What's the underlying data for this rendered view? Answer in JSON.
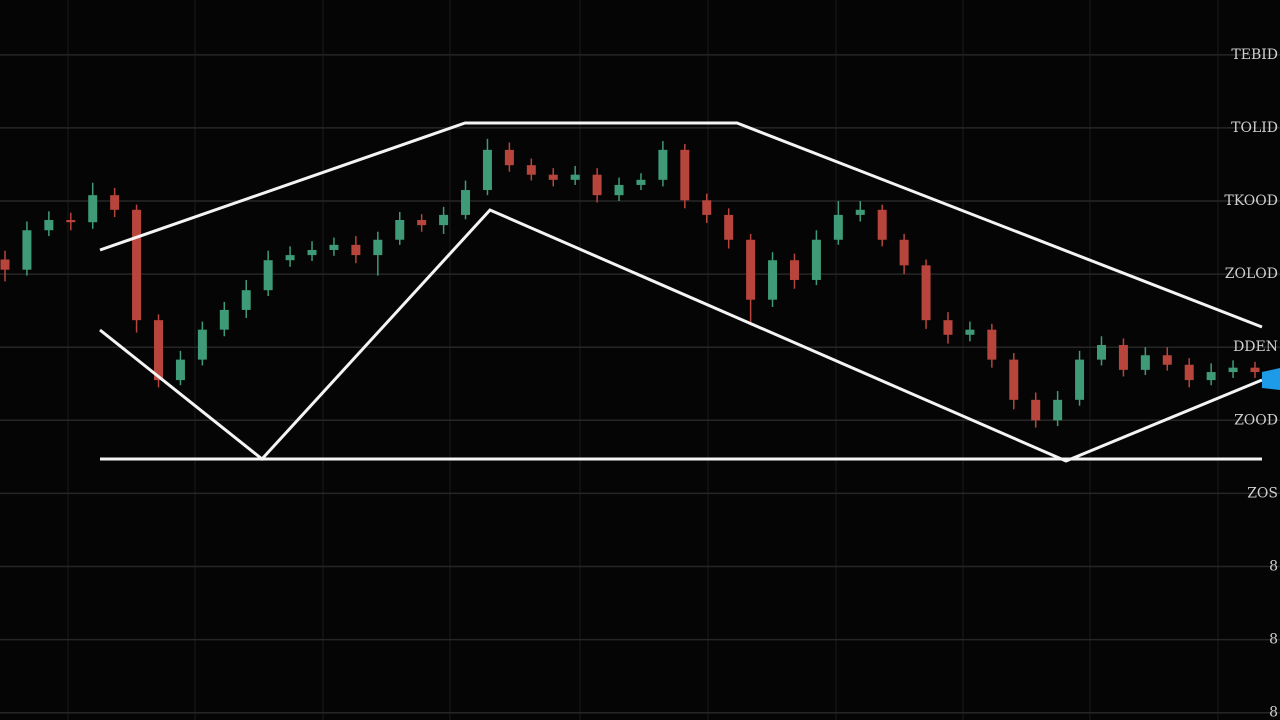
{
  "chart_data": {
    "type": "candlestick",
    "open": [
      6.2,
      6.06,
      6.6,
      6.74,
      6.71,
      7.08,
      6.88,
      5.37,
      4.55,
      4.83,
      5.24,
      5.51,
      5.78,
      6.19,
      6.26,
      6.33,
      6.4,
      6.26,
      6.47,
      6.74,
      6.67,
      6.81,
      7.15,
      7.7,
      7.49,
      7.36,
      7.29,
      7.36,
      7.08,
      7.22,
      7.29,
      7.7,
      7.01,
      6.81,
      6.47,
      5.65,
      6.19,
      5.92,
      6.47,
      6.81,
      6.88,
      6.47,
      6.12,
      5.37,
      5.17,
      5.24,
      4.83,
      4.28,
      4.0,
      4.28,
      4.83,
      5.03,
      4.69,
      4.89,
      4.76,
      4.55,
      4.66,
      4.72
    ],
    "high": [
      6.32,
      6.72,
      6.86,
      6.84,
      7.25,
      7.18,
      6.95,
      5.45,
      4.95,
      5.35,
      5.62,
      5.92,
      6.32,
      6.38,
      6.45,
      6.5,
      6.52,
      6.58,
      6.85,
      6.82,
      6.92,
      7.28,
      7.85,
      7.8,
      7.58,
      7.45,
      7.48,
      7.45,
      7.32,
      7.38,
      7.82,
      7.78,
      7.1,
      6.9,
      6.55,
      6.3,
      6.28,
      6.6,
      7.0,
      7.0,
      6.95,
      6.55,
      6.2,
      5.48,
      5.35,
      5.32,
      4.92,
      4.38,
      4.4,
      4.95,
      5.15,
      5.12,
      5.0,
      5.0,
      4.85,
      4.78,
      4.82,
      4.8
    ],
    "low": [
      5.9,
      5.98,
      6.52,
      6.6,
      6.62,
      6.78,
      5.2,
      4.45,
      4.48,
      4.75,
      5.15,
      5.4,
      5.7,
      6.1,
      6.18,
      6.25,
      6.15,
      5.98,
      6.4,
      6.58,
      6.55,
      6.75,
      7.08,
      7.4,
      7.28,
      7.2,
      7.22,
      6.98,
      7.0,
      7.15,
      7.2,
      6.9,
      6.7,
      6.35,
      5.3,
      5.55,
      5.8,
      5.85,
      6.4,
      6.72,
      6.38,
      6.0,
      5.25,
      5.05,
      5.08,
      4.72,
      4.15,
      3.9,
      3.92,
      4.2,
      4.75,
      4.6,
      4.62,
      4.68,
      4.45,
      4.48,
      4.58,
      4.58
    ],
    "close": [
      6.06,
      6.6,
      6.74,
      6.71,
      7.08,
      6.88,
      5.37,
      4.55,
      4.83,
      5.24,
      5.51,
      5.78,
      6.19,
      6.26,
      6.33,
      6.4,
      6.26,
      6.47,
      6.74,
      6.67,
      6.81,
      7.15,
      7.7,
      7.49,
      7.36,
      7.29,
      7.36,
      7.08,
      7.22,
      7.29,
      7.7,
      7.01,
      6.81,
      6.47,
      5.65,
      6.19,
      5.92,
      6.47,
      6.81,
      6.88,
      6.47,
      6.12,
      5.37,
      5.17,
      5.24,
      4.83,
      4.28,
      4.0,
      4.28,
      4.83,
      5.03,
      4.69,
      4.89,
      4.76,
      4.55,
      4.66,
      4.72,
      4.66
    ],
    "up_color": "#3f9a78",
    "down_color": "#b8453c",
    "ylim": [
      -0.1,
      9.75
    ],
    "yticks": [
      {
        "value": 0,
        "label": "8"
      },
      {
        "value": 1,
        "label": "8"
      },
      {
        "value": 2,
        "label": "8"
      },
      {
        "value": 3,
        "label": "ZOS"
      },
      {
        "value": 4,
        "label": "ZOOD"
      },
      {
        "value": 5,
        "label": "DDEN"
      },
      {
        "value": 6,
        "label": "ZOLOD"
      },
      {
        "value": 7,
        "label": "TKOOD"
      },
      {
        "value": 8,
        "label": "TOLID"
      },
      {
        "value": 9,
        "label": "TEBID"
      }
    ],
    "grid": true
  }
}
